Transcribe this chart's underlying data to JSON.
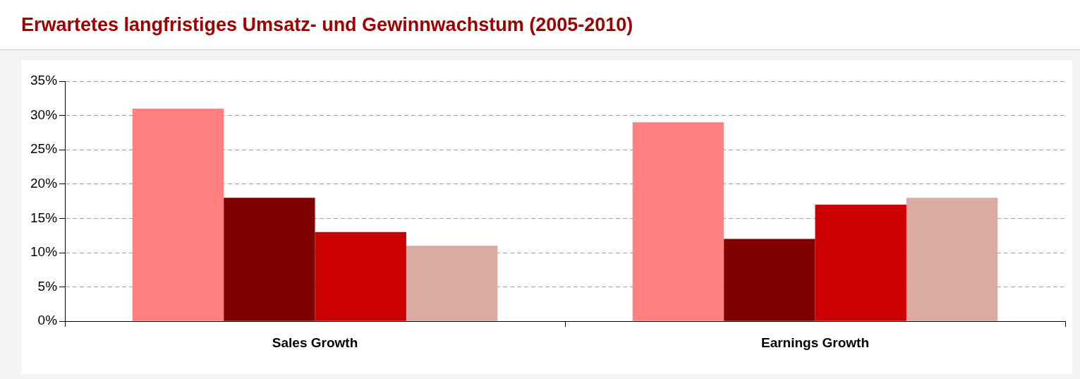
{
  "chart_data": {
    "type": "bar",
    "title": "Erwartetes langfristiges Umsatz- und Gewinnwachstum (2005-2010)",
    "categories": [
      "Sales Growth",
      "Earnings Growth"
    ],
    "series": [
      {
        "color": "#ff8080",
        "values": [
          31,
          29
        ]
      },
      {
        "color": "#800000",
        "values": [
          18,
          12
        ]
      },
      {
        "color": "#cc0000",
        "values": [
          13,
          17
        ]
      },
      {
        "color": "#d9aba3",
        "values": [
          11,
          18
        ]
      }
    ],
    "ylim": [
      0,
      35
    ],
    "yticks": [
      {
        "value": 0,
        "label": "0%"
      },
      {
        "value": 5,
        "label": "5%"
      },
      {
        "value": 10,
        "label": "10%"
      },
      {
        "value": 15,
        "label": "15%"
      },
      {
        "value": 20,
        "label": "20%"
      },
      {
        "value": 25,
        "label": "25%"
      },
      {
        "value": 30,
        "label": "30%"
      },
      {
        "value": 35,
        "label": "35%"
      }
    ],
    "grid": "y",
    "legend": false
  }
}
